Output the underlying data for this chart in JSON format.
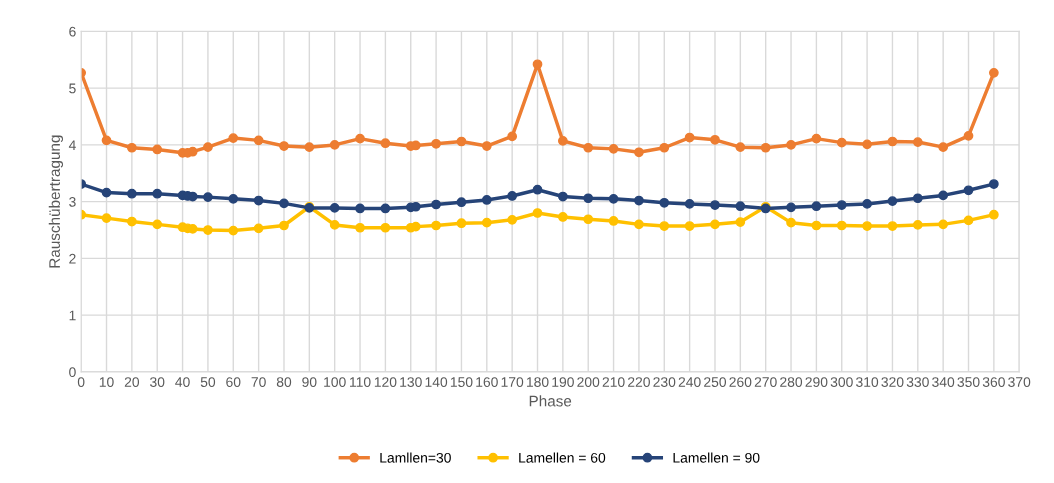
{
  "chart_data": {
    "type": "line",
    "xlabel": "Phase",
    "ylabel": "Rauschübertragung",
    "x": [
      0,
      10,
      20,
      30,
      40,
      42,
      44,
      50,
      60,
      70,
      80,
      90,
      100,
      110,
      120,
      130,
      132,
      140,
      150,
      160,
      170,
      180,
      190,
      200,
      210,
      220,
      230,
      240,
      250,
      260,
      270,
      280,
      290,
      300,
      310,
      320,
      330,
      340,
      350,
      360
    ],
    "series": [
      {
        "name": "Lamllen=30",
        "color": "#ed7d31",
        "values": [
          5.27,
          4.08,
          3.95,
          3.92,
          3.86,
          3.86,
          3.88,
          3.96,
          4.12,
          4.08,
          3.98,
          3.96,
          4.0,
          4.11,
          4.03,
          3.98,
          3.99,
          4.02,
          4.06,
          3.98,
          4.15,
          5.42,
          4.07,
          3.95,
          3.93,
          3.87,
          3.95,
          4.13,
          4.09,
          3.96,
          3.95,
          4.0,
          4.11,
          4.04,
          4.01,
          4.06,
          4.05,
          3.96,
          4.16,
          5.27
        ]
      },
      {
        "name": "Lamellen = 60",
        "color": "#ffc000",
        "values": [
          2.77,
          2.71,
          2.65,
          2.6,
          2.55,
          2.53,
          2.52,
          2.5,
          2.49,
          2.53,
          2.58,
          2.91,
          2.59,
          2.54,
          2.54,
          2.54,
          2.56,
          2.58,
          2.62,
          2.63,
          2.68,
          2.8,
          2.73,
          2.69,
          2.66,
          2.6,
          2.57,
          2.57,
          2.6,
          2.64,
          2.91,
          2.63,
          2.58,
          2.58,
          2.57,
          2.57,
          2.59,
          2.6,
          2.67,
          2.77
        ]
      },
      {
        "name": "Lamellen = 90",
        "color": "#264478",
        "values": [
          3.31,
          3.16,
          3.14,
          3.14,
          3.11,
          3.1,
          3.09,
          3.08,
          3.05,
          3.02,
          2.97,
          2.89,
          2.89,
          2.88,
          2.88,
          2.9,
          2.91,
          2.95,
          2.99,
          3.03,
          3.1,
          3.21,
          3.09,
          3.06,
          3.05,
          3.02,
          2.98,
          2.96,
          2.94,
          2.92,
          2.88,
          2.9,
          2.92,
          2.94,
          2.96,
          3.01,
          3.06,
          3.11,
          3.2,
          3.31
        ]
      }
    ],
    "xlim": [
      0,
      370
    ],
    "xticks": [
      0,
      10,
      20,
      30,
      40,
      50,
      60,
      70,
      80,
      90,
      100,
      110,
      120,
      130,
      140,
      150,
      160,
      170,
      180,
      190,
      200,
      210,
      220,
      230,
      240,
      250,
      260,
      270,
      280,
      290,
      300,
      310,
      320,
      330,
      340,
      350,
      360,
      370
    ],
    "ylim": [
      0,
      6
    ],
    "yticks": [
      0,
      1,
      2,
      3,
      4,
      5,
      6
    ],
    "grid": true,
    "legend": "bottom",
    "marker": "circle",
    "line_style": "solid"
  }
}
